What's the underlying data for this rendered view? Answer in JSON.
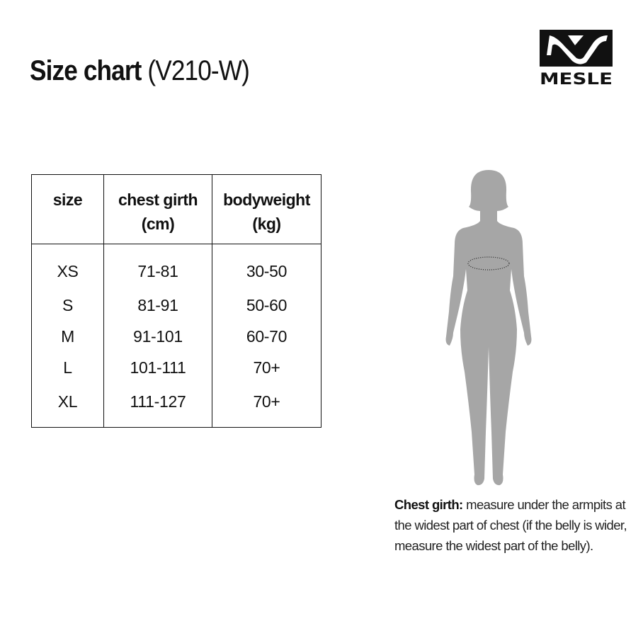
{
  "header": {
    "title_bold": "Size chart",
    "title_model": "(V210-W)",
    "logo_text": "MESLE"
  },
  "table": {
    "headers": [
      {
        "line1": "size",
        "line2": ""
      },
      {
        "line1": "chest girth",
        "line2": "(cm)"
      },
      {
        "line1": "bodyweight",
        "line2": "(kg)"
      }
    ],
    "rows": [
      [
        "XS",
        "71-81",
        "30-50"
      ],
      [
        "S",
        "81-91",
        "50-60"
      ],
      [
        "M",
        "91-101",
        "60-70"
      ],
      [
        "L",
        "101-111",
        "70+"
      ],
      [
        "XL",
        "111-127",
        "70+"
      ]
    ]
  },
  "note": {
    "label": "Chest girth:",
    "text": " measure under the armpits at the widest part of chest (if the belly is wider, measure the widest part of the belly)."
  },
  "colors": {
    "silhouette": "#a6a6a6",
    "text": "#111111"
  }
}
